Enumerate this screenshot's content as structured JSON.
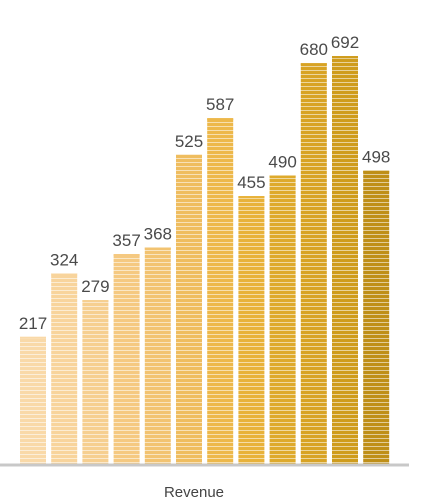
{
  "chart_data": {
    "type": "bar",
    "values": [
      217,
      324,
      279,
      357,
      368,
      525,
      587,
      455,
      490,
      680,
      692,
      498
    ],
    "xlabel": "Revenue",
    "ylim": [
      0,
      770
    ],
    "grid": false,
    "legend": "none"
  },
  "colors": {
    "bar_fills": [
      "#f9d9a8",
      "#f8d49c",
      "#f6cf90",
      "#f5c981",
      "#f2c371",
      "#efbd5f",
      "#edb84a",
      "#e8b23a",
      "#deaa2c",
      "#d8a324",
      "#cf9c1c",
      "#bf8f18"
    ],
    "axis": "#c8c8c8",
    "label": "#4a4a4a"
  }
}
